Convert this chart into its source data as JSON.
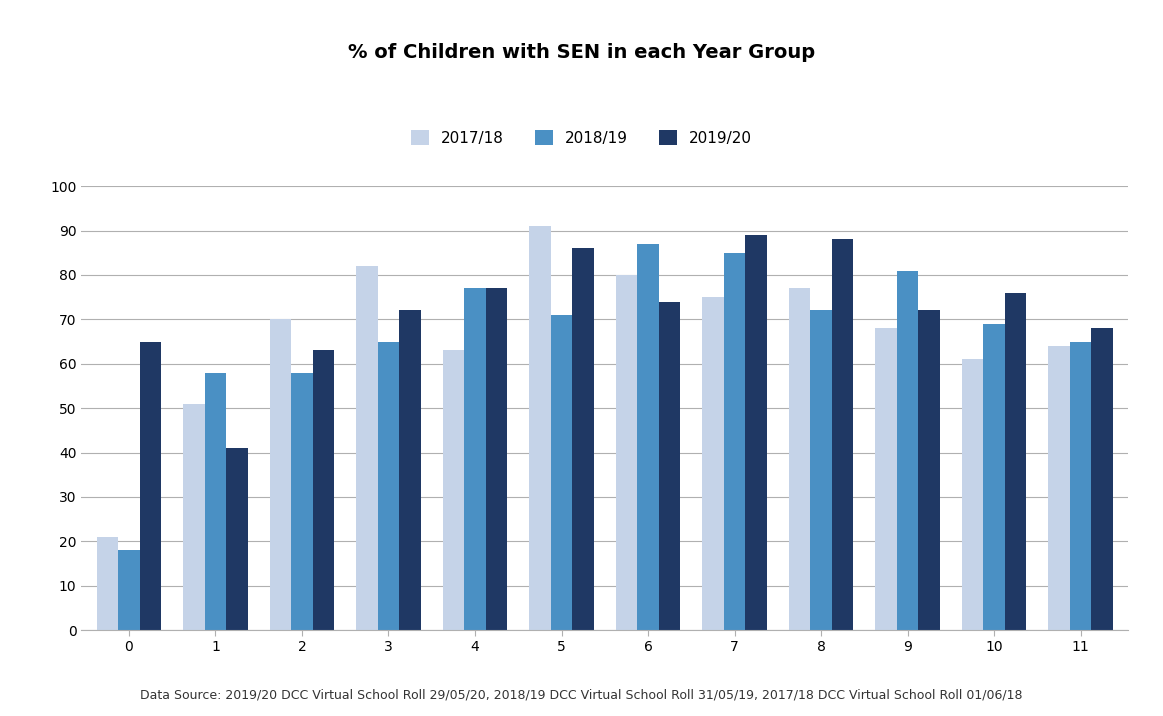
{
  "title": "% of Children with SEN in each Year Group",
  "categories": [
    0,
    1,
    2,
    3,
    4,
    5,
    6,
    7,
    8,
    9,
    10,
    11
  ],
  "series": {
    "2017/18": [
      21,
      51,
      70,
      82,
      63,
      91,
      80,
      75,
      77,
      68,
      61,
      64
    ],
    "2018/19": [
      18,
      58,
      58,
      65,
      77,
      71,
      87,
      85,
      72,
      81,
      69,
      65
    ],
    "2019/20": [
      65,
      41,
      63,
      72,
      77,
      86,
      74,
      89,
      88,
      72,
      76,
      68
    ]
  },
  "colors": {
    "2017/18": "#c5d3e8",
    "2018/19": "#4a90c4",
    "2019/20": "#1f3864"
  },
  "legend_labels": [
    "2017/18",
    "2018/19",
    "2019/20"
  ],
  "ylim": [
    0,
    100
  ],
  "yticks": [
    0,
    10,
    20,
    30,
    40,
    50,
    60,
    70,
    80,
    90,
    100
  ],
  "footnote": "Data Source: 2019/20 DCC Virtual School Roll 29/05/20, 2018/19 DCC Virtual School Roll 31/05/19, 2017/18 DCC Virtual School Roll 01/06/18",
  "bar_width": 0.25,
  "background_color": "#ffffff",
  "grid_color": "#b0b0b0",
  "title_fontsize": 14,
  "legend_fontsize": 11,
  "tick_fontsize": 10,
  "footnote_fontsize": 9
}
